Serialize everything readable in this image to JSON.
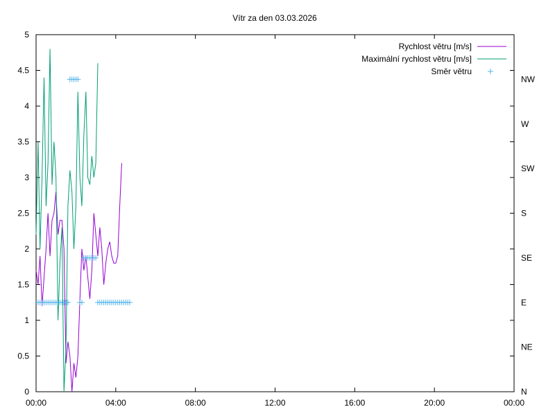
{
  "chart_data": {
    "type": "line",
    "title": "Vítr za den 03.03.2026",
    "xlabel": "",
    "ylabel": "",
    "x_unit": "hours",
    "xlim": [
      0,
      24
    ],
    "ylim": [
      0,
      5
    ],
    "x_ticks": [
      {
        "value": 0,
        "label": "00:00"
      },
      {
        "value": 4,
        "label": "04:00"
      },
      {
        "value": 8,
        "label": "08:00"
      },
      {
        "value": 12,
        "label": "12:00"
      },
      {
        "value": 16,
        "label": "16:00"
      },
      {
        "value": 20,
        "label": "20:00"
      },
      {
        "value": 24,
        "label": "00:00"
      }
    ],
    "y_ticks": [
      {
        "value": 0,
        "label": "0"
      },
      {
        "value": 0.5,
        "label": "0.5"
      },
      {
        "value": 1,
        "label": "1"
      },
      {
        "value": 1.5,
        "label": "1.5"
      },
      {
        "value": 2,
        "label": "2"
      },
      {
        "value": 2.5,
        "label": "2.5"
      },
      {
        "value": 3,
        "label": "3"
      },
      {
        "value": 3.5,
        "label": "3.5"
      },
      {
        "value": 4,
        "label": "4"
      },
      {
        "value": 4.5,
        "label": "4.5"
      },
      {
        "value": 5,
        "label": "5"
      }
    ],
    "y2lim": [
      0,
      360
    ],
    "y2_ticks": [
      {
        "value": 0,
        "label": "N"
      },
      {
        "value": 45,
        "label": "NE"
      },
      {
        "value": 90,
        "label": "E"
      },
      {
        "value": 135,
        "label": "SE"
      },
      {
        "value": 180,
        "label": "S"
      },
      {
        "value": 225,
        "label": "SW"
      },
      {
        "value": 270,
        "label": "W"
      },
      {
        "value": 315,
        "label": "NW"
      }
    ],
    "grid": false,
    "legend_position": "top-right",
    "series": [
      {
        "name": "Rychlost větru [m/s]",
        "kind": "line",
        "axis": "y",
        "color": "#9400d3",
        "x": [
          0,
          0.1,
          0.2,
          0.3,
          0.4,
          0.5,
          0.6,
          0.7,
          0.8,
          0.9,
          1.0,
          1.1,
          1.2,
          1.3,
          1.4,
          1.5,
          1.6,
          1.7,
          1.8,
          1.9,
          2.0,
          2.1,
          2.2,
          2.3,
          2.4,
          2.5,
          2.6,
          2.7,
          2.8,
          2.9,
          3.0,
          3.1,
          3.2,
          3.3,
          3.4,
          3.5,
          3.6,
          3.7,
          3.8,
          3.9,
          4.0,
          4.1,
          4.2,
          4.3,
          4.4,
          4.5,
          4.6,
          4.7,
          4.8
        ],
        "values": [
          1.7,
          1.5,
          1.9,
          1.2,
          1.6,
          2.0,
          2.5,
          1.9,
          2.4,
          2.5,
          2.8,
          2.2,
          2.4,
          2.4,
          2.0,
          0.4,
          0.7,
          0.5,
          0.0,
          0.4,
          0.2,
          0.5,
          1.3,
          2.0,
          1.7,
          1.9,
          1.6,
          1.3,
          1.7,
          2.5,
          2.2,
          1.9,
          2.3,
          2.0,
          1.5,
          1.8,
          2.0,
          2.1,
          1.9,
          1.8,
          1.8,
          1.9,
          2.6,
          3.2,
          null,
          null,
          null,
          null,
          null
        ]
      },
      {
        "name": "Maximální rychlost větru [m/s]",
        "kind": "line",
        "axis": "y",
        "color": "#009e73",
        "x": [
          0,
          0.1,
          0.2,
          0.3,
          0.4,
          0.5,
          0.6,
          0.7,
          0.8,
          0.9,
          1.0,
          1.1,
          1.2,
          1.3,
          1.4,
          1.5,
          1.6,
          1.7,
          1.8,
          1.9,
          2.0,
          2.1,
          2.2,
          2.3,
          2.4,
          2.5,
          2.6,
          2.7,
          2.8,
          2.9,
          3.0,
          3.1,
          3.2,
          3.3,
          3.4,
          3.5,
          3.6,
          3.7,
          3.8,
          3.9,
          4.0,
          4.1,
          4.2,
          4.3,
          4.4,
          4.5,
          4.6,
          4.7,
          4.8
        ],
        "values": [
          2.2,
          3.5,
          2.0,
          3.0,
          4.4,
          2.6,
          3.2,
          4.8,
          2.9,
          3.5,
          3.0,
          1.0,
          1.8,
          2.3,
          0.0,
          0.6,
          2.6,
          3.1,
          2.8,
          2.0,
          2.6,
          4.2,
          3.0,
          2.6,
          3.6,
          4.2,
          3.0,
          2.9,
          3.3,
          3.0,
          3.2,
          4.6,
          null,
          null,
          null,
          null,
          null,
          null,
          null,
          null,
          null,
          null,
          null,
          null,
          null,
          null,
          null,
          null,
          null
        ]
      },
      {
        "name": "Směr větru",
        "kind": "points",
        "axis": "y2",
        "color": "#56b4e9",
        "x": [
          0.1,
          0.2,
          0.3,
          0.4,
          0.5,
          0.6,
          0.7,
          0.8,
          0.9,
          1.0,
          1.1,
          1.2,
          1.3,
          1.4,
          1.5,
          1.6,
          1.7,
          1.8,
          1.9,
          2.0,
          2.1,
          2.2,
          2.3,
          2.4,
          2.5,
          2.6,
          2.7,
          2.8,
          2.9,
          3.0,
          3.1,
          3.2,
          3.3,
          3.4,
          3.5,
          3.6,
          3.7,
          3.8,
          3.9,
          4.0,
          4.1,
          4.2,
          4.3,
          4.4,
          4.5,
          4.6,
          4.7
        ],
        "values": [
          90,
          90,
          90,
          90,
          90,
          90,
          90,
          90,
          90,
          90,
          90,
          90,
          90,
          90,
          90,
          90,
          315,
          315,
          315,
          315,
          315,
          90,
          90,
          135,
          135,
          135,
          135,
          135,
          135,
          135,
          90,
          90,
          90,
          90,
          90,
          90,
          90,
          90,
          90,
          90,
          90,
          90,
          90,
          90,
          90,
          90,
          90
        ]
      }
    ]
  }
}
